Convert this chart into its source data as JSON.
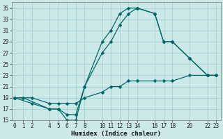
{
  "xlabel": "Humidex (Indice chaleur)",
  "bg_color": "#cce8e8",
  "line_color": "#006868",
  "grid_color": "#99cccc",
  "ylim": [
    15,
    36
  ],
  "xlim": [
    -0.3,
    23.5
  ],
  "yticks": [
    15,
    17,
    19,
    21,
    23,
    25,
    27,
    29,
    31,
    33,
    35
  ],
  "xticks": [
    0,
    1,
    2,
    4,
    5,
    6,
    7,
    8,
    10,
    11,
    12,
    13,
    14,
    16,
    17,
    18,
    20,
    22,
    23
  ],
  "line_top_x": [
    0,
    1,
    4,
    5,
    6,
    7,
    8,
    10,
    11,
    12,
    13,
    14,
    16,
    17,
    18,
    20,
    22,
    23
  ],
  "line_top_y": [
    19,
    19,
    17,
    17,
    15,
    15,
    21,
    29,
    31,
    34,
    35,
    35,
    34,
    29,
    29,
    26,
    23,
    23
  ],
  "line_mid_x": [
    0,
    2,
    4,
    5,
    6,
    7,
    8,
    10,
    11,
    12,
    13,
    14,
    16,
    17,
    18,
    20,
    22,
    23
  ],
  "line_mid_y": [
    19,
    18,
    17,
    17,
    16,
    16,
    21,
    27,
    29,
    32,
    34,
    35,
    34,
    29,
    29,
    26,
    23,
    23
  ],
  "line_bot_x": [
    0,
    1,
    2,
    4,
    5,
    6,
    7,
    8,
    10,
    11,
    12,
    13,
    14,
    16,
    17,
    18,
    20,
    22,
    23
  ],
  "line_bot_y": [
    19,
    19,
    19,
    18,
    18,
    18,
    18,
    19,
    20,
    21,
    21,
    22,
    22,
    22,
    22,
    22,
    23,
    23,
    23
  ]
}
